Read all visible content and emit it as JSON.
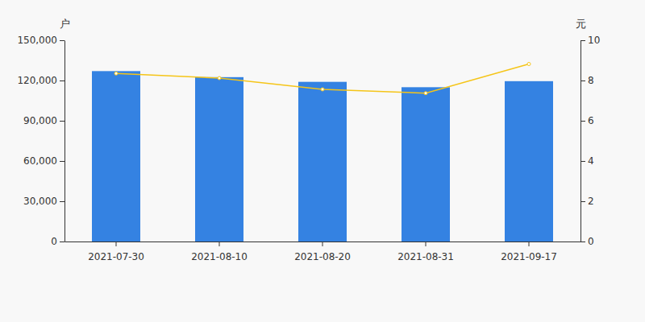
{
  "chart_data": {
    "type": "bar",
    "categories": [
      "2021-07-30",
      "2021-08-10",
      "2021-08-20",
      "2021-08-31",
      "2021-09-17"
    ],
    "ylabel": "户",
    "y2label": "元",
    "ylim": [
      0,
      150000
    ],
    "yticks": [
      0,
      {
        "value": 30000,
        "label": "30,000"
      },
      {
        "value": 60000,
        "label": "60,000"
      },
      {
        "value": 90000,
        "label": "90,000"
      },
      {
        "value": 120000,
        "label": "120,000"
      },
      {
        "value": 150000,
        "label": "150,000"
      }
    ],
    "y2lim": [
      0,
      10
    ],
    "y2ticks": [
      0,
      2,
      4,
      6,
      8,
      10
    ],
    "grid": false,
    "series": [
      {
        "type": "bar",
        "color": "#3482e2",
        "values": [
          127000,
          122500,
          119000,
          115000,
          119500
        ]
      },
      {
        "type": "line",
        "axis": "y2",
        "color": "#f5c518",
        "marker": "circle",
        "values": [
          8.35,
          8.12,
          7.56,
          7.37,
          8.82
        ]
      }
    ]
  }
}
